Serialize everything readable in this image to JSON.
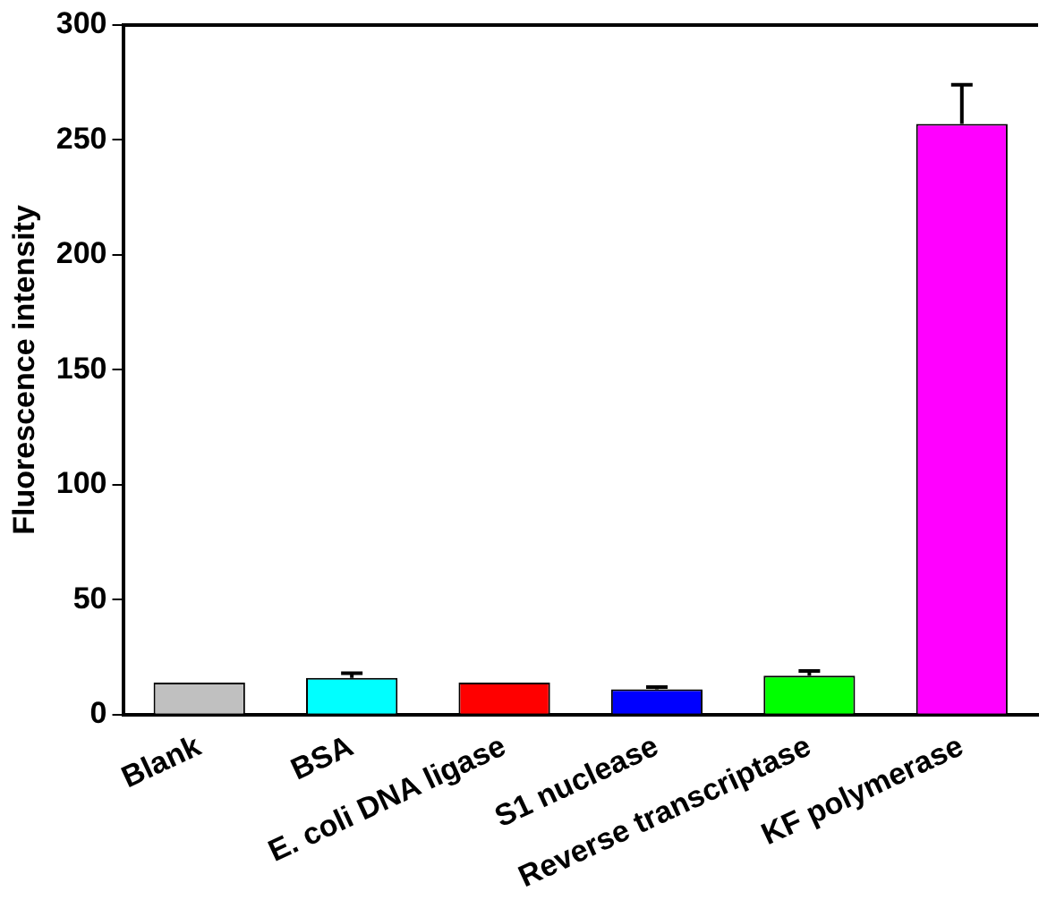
{
  "chart_data": {
    "type": "bar",
    "ylabel": "Fluorescence intensity",
    "categories": [
      "Blank",
      "BSA",
      "E. coli DNA ligase",
      "S1 nuclease",
      "Reverse transcriptase",
      "KF polymerase"
    ],
    "values": [
      14,
      16,
      14,
      11,
      17,
      257
    ],
    "errors": [
      null,
      [
        16,
        18
      ],
      null,
      [
        11,
        12
      ],
      [
        17,
        19
      ],
      [
        257,
        274
      ]
    ],
    "colors": [
      "#c0c0c0",
      "#00ffff",
      "#ff0000",
      "#0000ff",
      "#00ff00",
      "#ff00ff"
    ],
    "ylim": [
      0,
      300
    ],
    "yticks": [
      0,
      50,
      100,
      150,
      200,
      250,
      300
    ],
    "grid": false,
    "legend": false
  }
}
